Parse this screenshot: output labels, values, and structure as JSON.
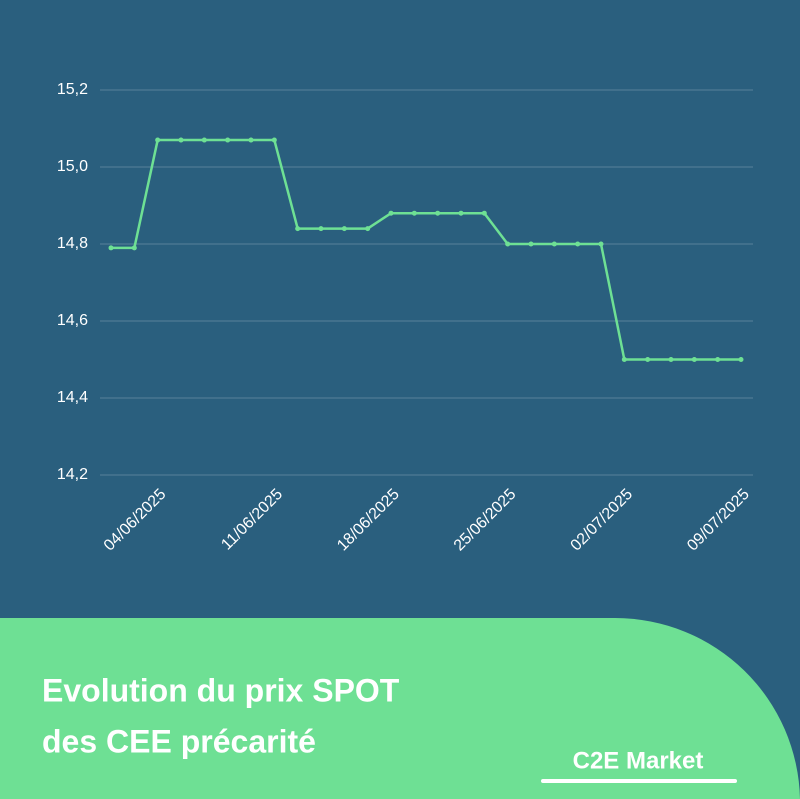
{
  "chart_data": {
    "type": "line",
    "title_lines": [
      "Evolution du prix SPOT",
      "des CEE précarité"
    ],
    "brand": "C2E Market",
    "categories": [
      null,
      null,
      "04/06/2025",
      null,
      null,
      null,
      null,
      "11/06/2025",
      null,
      null,
      null,
      null,
      "18/06/2025",
      null,
      null,
      null,
      null,
      "25/06/2025",
      null,
      null,
      null,
      null,
      "02/07/2025",
      null,
      null,
      null,
      null,
      "09/07/2025"
    ],
    "series": [
      {
        "color": "#6ee094",
        "values": [
          14.79,
          14.79,
          15.07,
          15.07,
          15.07,
          15.07,
          15.07,
          15.07,
          14.84,
          14.84,
          14.84,
          14.84,
          14.88,
          14.88,
          14.88,
          14.88,
          14.88,
          14.8,
          14.8,
          14.8,
          14.8,
          14.8,
          14.5,
          14.5,
          14.5,
          14.5,
          14.5,
          14.5
        ]
      }
    ],
    "ylim": [
      14.2,
      15.2
    ],
    "yticks": [
      {
        "value": 14.2,
        "label": "14,2"
      },
      {
        "value": 14.4,
        "label": "14,4"
      },
      {
        "value": 14.6,
        "label": "14,6"
      },
      {
        "value": 14.8,
        "label": "14,8"
      },
      {
        "value": 15.0,
        "label": "15,0"
      },
      {
        "value": 15.2,
        "label": "15,2"
      }
    ],
    "grid": true
  }
}
